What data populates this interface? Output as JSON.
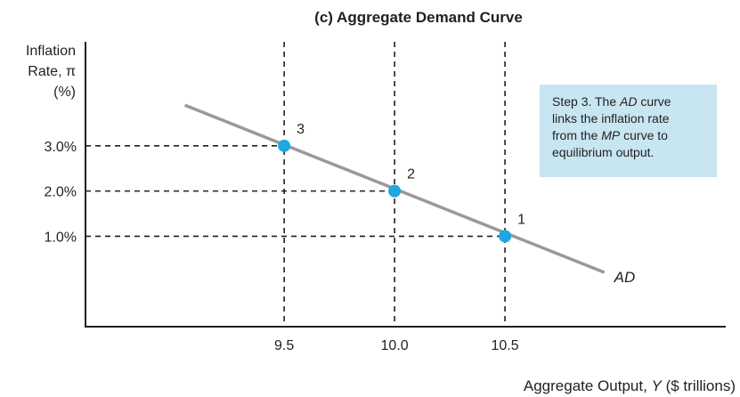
{
  "chart_data": {
    "type": "line",
    "title": "(c) Aggregate Demand Curve",
    "ylabel_lines": [
      "Inflation",
      "Rate, π",
      "(%)"
    ],
    "xlabel": "Aggregate Output, Y ($ trillions)",
    "x_ticks": [
      {
        "value": 9.5,
        "label": "9.5"
      },
      {
        "value": 10.0,
        "label": "10.0"
      },
      {
        "value": 10.5,
        "label": "10.5"
      }
    ],
    "y_ticks": [
      {
        "value": 3.0,
        "label": "3.0%"
      },
      {
        "value": 2.0,
        "label": "2.0%"
      },
      {
        "value": 1.0,
        "label": "1.0%"
      }
    ],
    "xlim": [
      8.6,
      11.5
    ],
    "ylim": [
      -1.0,
      5.3
    ],
    "series": [
      {
        "name": "AD",
        "color": "#999999",
        "x": [
          9.05,
          10.95
        ],
        "y": [
          3.9,
          0.2
        ]
      }
    ],
    "points": [
      {
        "label": "3",
        "x": 9.5,
        "y": 3.0
      },
      {
        "label": "2",
        "x": 10.0,
        "y": 2.0
      },
      {
        "label": "1",
        "x": 10.5,
        "y": 1.0
      }
    ],
    "point_color": "#1ea7e1",
    "annotation": {
      "lines": [
        [
          {
            "text": "Step 3. The ",
            "italic": false
          },
          {
            "text": "AD",
            "italic": true
          },
          {
            "text": " curve",
            "italic": false
          }
        ],
        [
          {
            "text": "links the inflation rate",
            "italic": false
          }
        ],
        [
          {
            "text": "from the ",
            "italic": false
          },
          {
            "text": "MP",
            "italic": true
          },
          {
            "text": " curve to",
            "italic": false
          }
        ],
        [
          {
            "text": "equilibrium output.",
            "italic": false
          }
        ]
      ],
      "background": "#c7e6f1"
    },
    "grid": false,
    "legend": "none"
  }
}
